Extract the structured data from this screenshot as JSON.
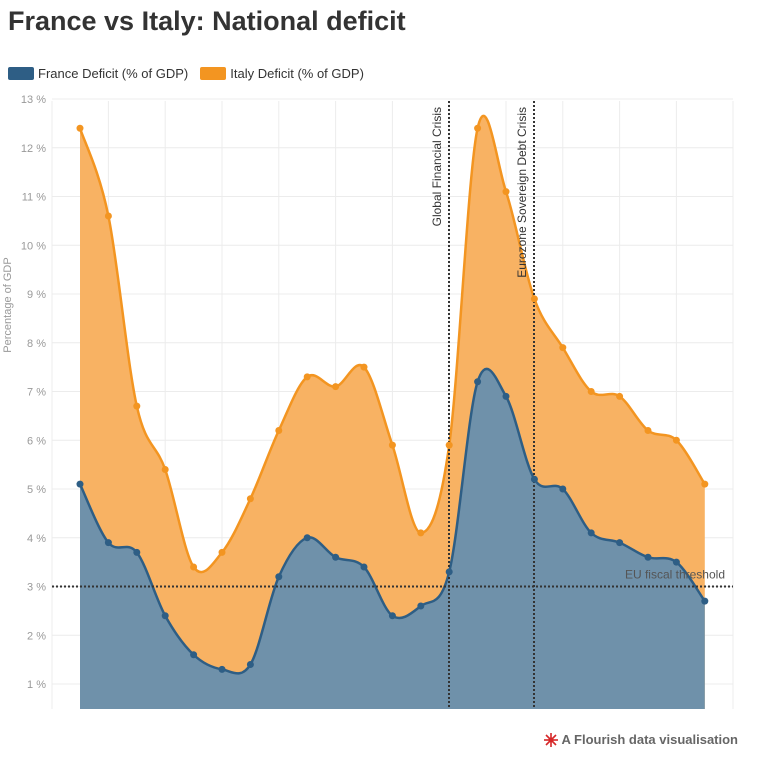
{
  "title": "France vs Italy: National deficit",
  "legend": {
    "france": "France Deficit (% of GDP)",
    "italy": "Italy Deficit (% of GDP)"
  },
  "colors": {
    "france": "#2e5e85",
    "italy": "#f39521",
    "france_fill": "#6f91aa",
    "italy_fill": "#f8b263"
  },
  "footer": "A Flourish data visualisation",
  "footer_icon": "flourish-logo-icon",
  "chart_data": {
    "type": "area",
    "ylabel": "Percentage of GDP",
    "ylim": [
      0.5,
      13
    ],
    "y_ticks": [
      "1 %",
      "2 %",
      "3 %",
      "4 %",
      "5 %",
      "6 %",
      "7 %",
      "8 %",
      "9 %",
      "10 %",
      "11 %",
      "12 %",
      "13 %"
    ],
    "grid": true,
    "legend_position": "top-left",
    "series": [
      {
        "name": "France Deficit (% of GDP)",
        "values": [
          5.1,
          3.9,
          3.7,
          2.4,
          1.6,
          1.3,
          1.4,
          3.2,
          4.0,
          3.6,
          3.4,
          2.4,
          2.6,
          3.3,
          7.2,
          6.9,
          5.2,
          5.0,
          4.1,
          3.9,
          3.6,
          3.5,
          2.7
        ]
      },
      {
        "name": "Italy Deficit (% of GDP)",
        "values": [
          12.4,
          10.6,
          6.7,
          5.4,
          3.4,
          3.7,
          4.8,
          6.2,
          7.3,
          7.1,
          7.5,
          5.9,
          4.1,
          5.9,
          12.4,
          11.1,
          8.9,
          7.9,
          7.0,
          6.9,
          6.2,
          6.0,
          5.1
        ]
      }
    ],
    "reference_line": {
      "label": "EU fiscal threshold",
      "value": 3
    },
    "annotations": [
      {
        "label": "Global Financial Crisis",
        "at_index": 13
      },
      {
        "label": "Eurozone Sovereign Debt Crisis",
        "at_index": 16
      }
    ]
  }
}
